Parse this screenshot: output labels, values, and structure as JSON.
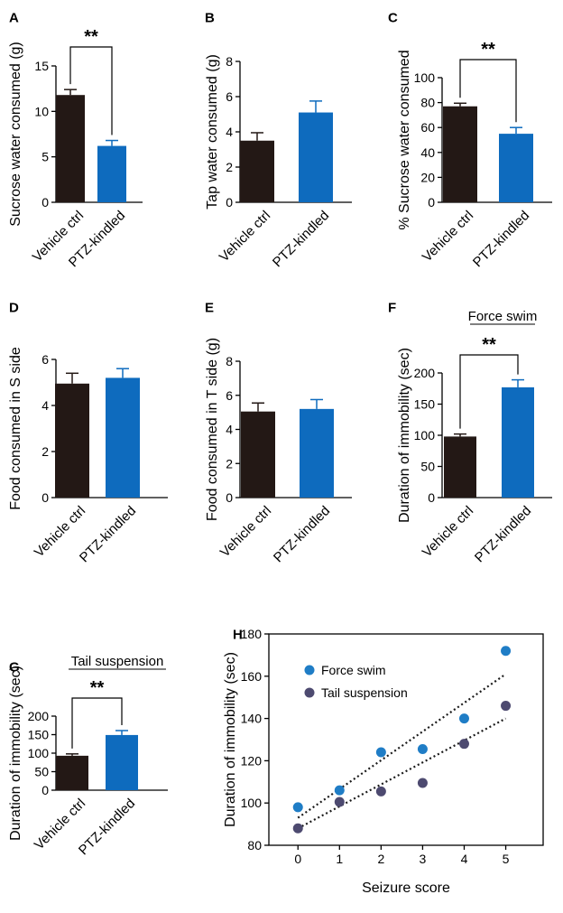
{
  "colors": {
    "vehicle": "#231815",
    "ptz": "#0E6BBE",
    "force_swim": "#1F7DC6",
    "tail_suspension": "#4D4A70",
    "axis": "#000000"
  },
  "chart_data": [
    {
      "panel": "A",
      "type": "bar",
      "ylabel": "Sucrose water consumed (g)",
      "categories": [
        "Vehicle ctrl",
        "PTZ-kindled"
      ],
      "values": [
        11.8,
        6.2
      ],
      "errors": [
        0.6,
        0.6
      ],
      "ylim": [
        0,
        15
      ],
      "yticks": [
        "0",
        "5",
        "10",
        "15"
      ],
      "significance": "**"
    },
    {
      "panel": "B",
      "type": "bar",
      "ylabel": "Tap water consumed (g)",
      "categories": [
        "Vehicle ctrl",
        "PTZ-kindled"
      ],
      "values": [
        3.5,
        5.1
      ],
      "errors": [
        0.45,
        0.65
      ],
      "ylim": [
        0,
        8
      ],
      "yticks": [
        "0",
        "2",
        "4",
        "6",
        "8"
      ],
      "significance": ""
    },
    {
      "panel": "C",
      "type": "bar",
      "ylabel": "% Sucrose water consumed",
      "categories": [
        "Vehicle ctrl",
        "PTZ-kindled"
      ],
      "values": [
        77,
        55
      ],
      "errors": [
        2.5,
        5
      ],
      "ylim": [
        0,
        100
      ],
      "yticks": [
        "0",
        "20",
        "40",
        "60",
        "80",
        "100"
      ],
      "significance": "**"
    },
    {
      "panel": "D",
      "type": "bar",
      "ylabel": "Food consumed in S side",
      "categories": [
        "Vehicle ctrl",
        "PTZ-kindled"
      ],
      "values": [
        4.95,
        5.2
      ],
      "errors": [
        0.45,
        0.4
      ],
      "ylim": [
        0,
        6
      ],
      "yticks": [
        "0",
        "2",
        "4",
        "6"
      ],
      "significance": ""
    },
    {
      "panel": "E",
      "type": "bar",
      "ylabel": "Food consumed in T side (g)",
      "categories": [
        "Vehicle ctrl",
        "PTZ-kindled"
      ],
      "values": [
        5.05,
        5.2
      ],
      "errors": [
        0.5,
        0.55
      ],
      "ylim": [
        0,
        8
      ],
      "yticks": [
        "0",
        "2",
        "4",
        "6",
        "8"
      ],
      "significance": ""
    },
    {
      "panel": "F",
      "type": "bar",
      "title": "Force swim",
      "ylabel": "Duration of immobility (sec)",
      "categories": [
        "Vehicle ctrl",
        "PTZ-kindled"
      ],
      "values": [
        98,
        177
      ],
      "errors": [
        4,
        12
      ],
      "ylim": [
        0,
        200
      ],
      "yticks": [
        "0",
        "50",
        "100",
        "150",
        "200"
      ],
      "significance": "**"
    },
    {
      "panel": "G",
      "type": "bar",
      "title": "Tail suspension",
      "ylabel": "Duration of immobility (sec)",
      "categories": [
        "Vehicle ctrl",
        "PTZ-kindled"
      ],
      "values": [
        93,
        149
      ],
      "errors": [
        5,
        12
      ],
      "ylim": [
        0,
        200
      ],
      "yticks": [
        "0",
        "50",
        "100",
        "150",
        "200"
      ],
      "significance": "**"
    },
    {
      "panel": "H",
      "type": "scatter",
      "xlabel": "Seizure score",
      "ylabel": "Duration of immobility (sec)",
      "xlim": [
        -0.7,
        5.9
      ],
      "ylim": [
        80,
        180
      ],
      "xticks": [
        "0",
        "1",
        "2",
        "3",
        "4",
        "5"
      ],
      "yticks": [
        "80",
        "100",
        "120",
        "140",
        "160",
        "180"
      ],
      "series": [
        {
          "name": "Force swim",
          "x": [
            0,
            1,
            2,
            3,
            4,
            5
          ],
          "y": [
            98,
            106,
            124,
            125.5,
            140,
            172
          ],
          "trend": [
            [
              0,
              93
            ],
            [
              5,
              161
            ]
          ]
        },
        {
          "name": "Tail suspension",
          "x": [
            0,
            1,
            2,
            3,
            4,
            5
          ],
          "y": [
            88,
            100.5,
            105.5,
            109.5,
            128,
            146
          ],
          "trend": [
            [
              0,
              88
            ],
            [
              5,
              140
            ]
          ]
        }
      ],
      "legend": "top-left"
    }
  ]
}
